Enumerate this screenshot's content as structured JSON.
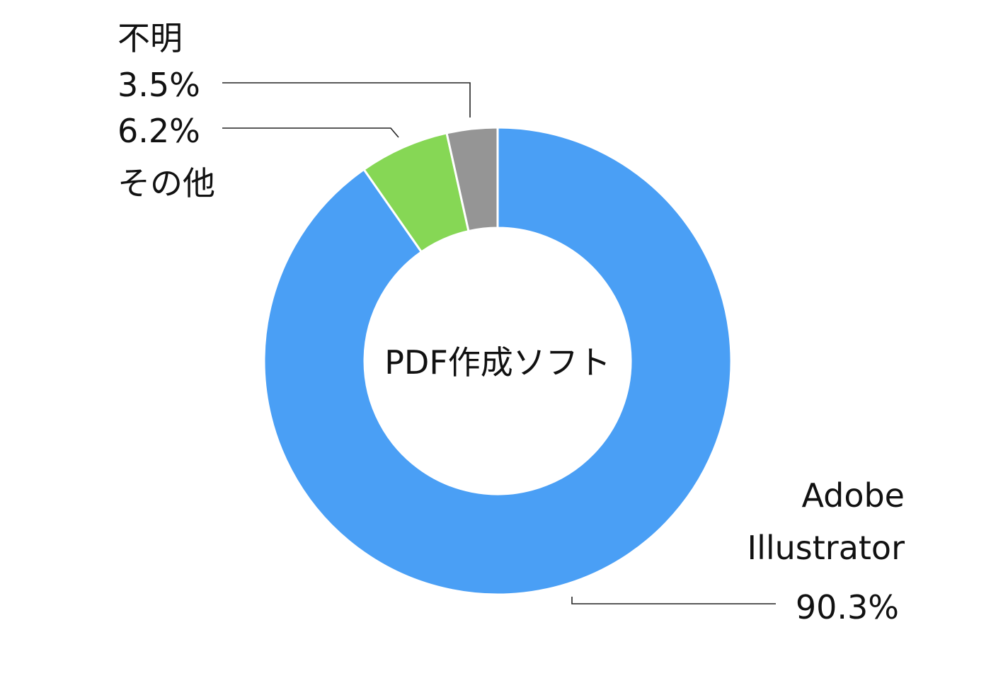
{
  "chart_data": {
    "type": "pie",
    "donut": true,
    "center_label": "PDF作成ソフト",
    "slices": [
      {
        "label_lines": [
          "Adobe",
          "Illustrator"
        ],
        "value": 90.3,
        "value_label": "90.3%",
        "color": "#4A9FF5"
      },
      {
        "label_lines": [
          "その他"
        ],
        "value": 6.2,
        "value_label": "6.2%",
        "color": "#86D755"
      },
      {
        "label_lines": [
          "不明"
        ],
        "value": 3.5,
        "value_label": "3.5%",
        "color": "#959595"
      }
    ]
  }
}
